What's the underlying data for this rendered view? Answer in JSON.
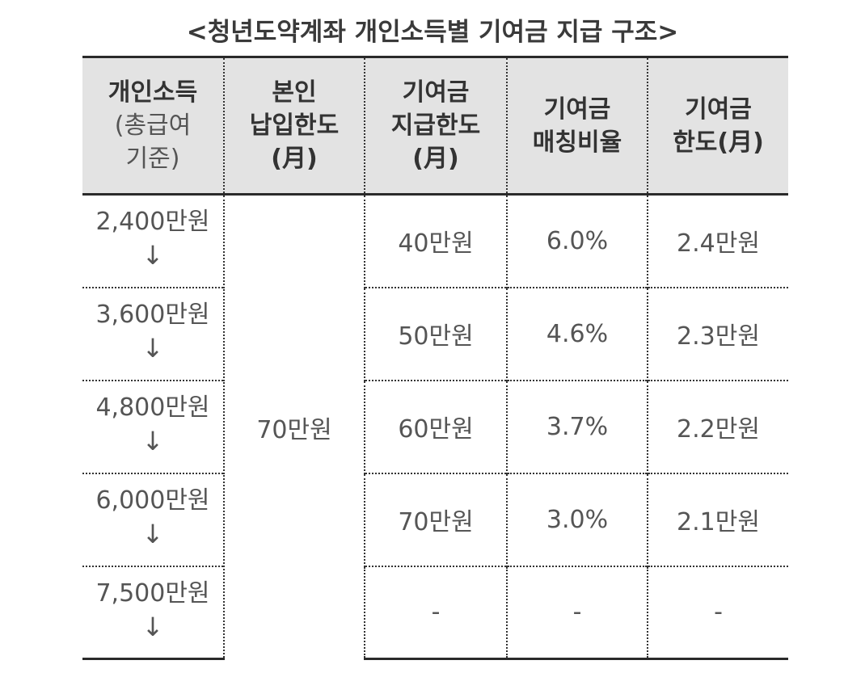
{
  "title": "<청년도약계좌 개인소득별 기여금 지급 구조>",
  "headers": {
    "income": {
      "line1": "개인소득",
      "line2": "(총급여",
      "line3": "기준)"
    },
    "self_limit": {
      "line1": "본인",
      "line2": "납입한도",
      "line3": "(月)"
    },
    "contribution_limit": {
      "line1": "기여금",
      "line2": "지급한도",
      "line3": "(月)"
    },
    "matching_rate": {
      "line1": "기여금",
      "line2": "매칭비율"
    },
    "monthly_cap": {
      "line1": "기여금",
      "line2": "한도(月)"
    }
  },
  "self_payment_limit": "70만원",
  "rows": [
    {
      "income": "2,400만원",
      "arrow": "↓",
      "contribution_limit": "40만원",
      "matching_rate": "6.0%",
      "monthly_cap": "2.4만원"
    },
    {
      "income": "3,600만원",
      "arrow": "↓",
      "contribution_limit": "50만원",
      "matching_rate": "4.6%",
      "monthly_cap": "2.3만원"
    },
    {
      "income": "4,800만원",
      "arrow": "↓",
      "contribution_limit": "60만원",
      "matching_rate": "3.7%",
      "monthly_cap": "2.2만원"
    },
    {
      "income": "6,000만원",
      "arrow": "↓",
      "contribution_limit": "70만원",
      "matching_rate": "3.0%",
      "monthly_cap": "2.1만원"
    },
    {
      "income": "7,500만원",
      "arrow": "↓",
      "contribution_limit": "-",
      "matching_rate": "-",
      "monthly_cap": "-"
    }
  ]
}
